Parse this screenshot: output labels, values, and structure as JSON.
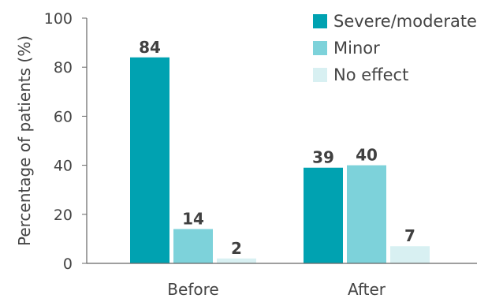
{
  "chart_data": {
    "type": "bar",
    "ylabel": "Percentage of patients (%)",
    "xlabel": "",
    "ylim": [
      0,
      100
    ],
    "yticks": [
      0,
      20,
      40,
      60,
      80,
      100
    ],
    "categories": [
      "Before",
      "After"
    ],
    "series": [
      {
        "name": "Severe/moderate",
        "color": "#00a2b1",
        "values": [
          84,
          39
        ]
      },
      {
        "name": "Minor",
        "color": "#7dd2da",
        "values": [
          14,
          40
        ]
      },
      {
        "name": "No effect",
        "color": "#d8f0f2",
        "values": [
          2,
          7
        ]
      }
    ],
    "data_labels": [
      [
        "84",
        "39"
      ],
      [
        "14",
        "40"
      ],
      [
        "2",
        "7"
      ]
    ],
    "legend_position": "top-right",
    "grid": false
  }
}
